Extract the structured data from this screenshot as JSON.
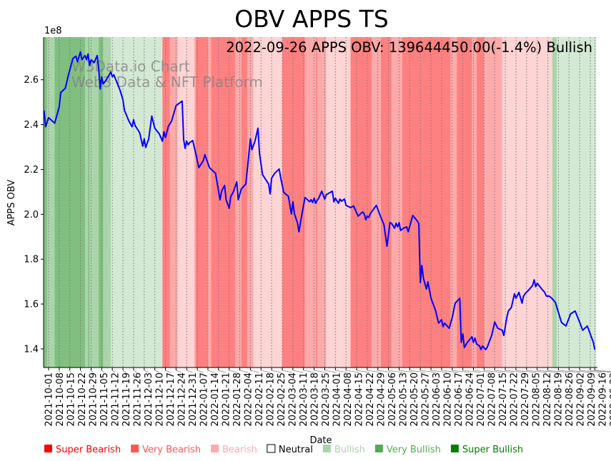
{
  "chart_data": {
    "type": "line",
    "title": "OBV APPS TS",
    "xlabel": "Date",
    "ylabel": "APPS OBV",
    "y_offset_label": "1e8",
    "y_scale": 100000000,
    "x_origin_date": "2021-10-01",
    "xlim_days": [
      -3.3,
      361.7
    ],
    "ylim": [
      1.317,
      2.79
    ],
    "yticks": [
      1.4,
      1.6,
      1.8,
      2.0,
      2.2,
      2.4,
      2.6
    ],
    "ytick_labels": [
      "1.4",
      "1.6",
      "1.8",
      "2.0",
      "2.2",
      "2.4",
      "2.6"
    ],
    "xtick_labels": [
      "2021-10-01",
      "2021-10-08",
      "2021-10-15",
      "2021-10-22",
      "2021-10-29",
      "2021-11-05",
      "2021-11-12",
      "2021-11-19",
      "2021-11-26",
      "2021-12-03",
      "2021-12-10",
      "2021-12-17",
      "2021-12-24",
      "2021-12-31",
      "2022-01-07",
      "2022-01-14",
      "2022-01-21",
      "2022-01-28",
      "2022-02-04",
      "2022-02-11",
      "2022-02-18",
      "2022-02-25",
      "2022-03-04",
      "2022-03-11",
      "2022-03-18",
      "2022-03-25",
      "2022-04-01",
      "2022-04-08",
      "2022-04-15",
      "2022-04-22",
      "2022-04-29",
      "2022-05-06",
      "2022-05-13",
      "2022-05-20",
      "2022-05-27",
      "2022-06-03",
      "2022-06-10",
      "2022-06-17",
      "2022-06-24",
      "2022-07-01",
      "2022-07-08",
      "2022-07-15",
      "2022-07-22",
      "2022-07-29",
      "2022-08-05",
      "2022-08-12",
      "2022-08-19",
      "2022-08-26",
      "2022-09-02",
      "2022-09-09",
      "2022-09-16",
      "2022-09-23",
      "2022-09-26"
    ],
    "grid": "vertical dotted at x ticks",
    "annotation": "2022-09-26 APPS OBV: 139644450.00(-1.4%) Bullish",
    "watermark": [
      "W3Data.io Chart",
      "Web3 Data & NFT Platform"
    ],
    "series": [
      {
        "name": "APPS OBV",
        "color": "#0000ff",
        "points_day_value": [
          [
            -3,
            2.463
          ],
          [
            -2,
            2.39
          ],
          [
            0,
            2.431
          ],
          [
            4,
            2.406
          ],
          [
            7,
            2.479
          ],
          [
            8,
            2.543
          ],
          [
            11,
            2.562
          ],
          [
            13,
            2.619
          ],
          [
            15,
            2.67
          ],
          [
            16,
            2.695
          ],
          [
            18,
            2.705
          ],
          [
            19,
            2.68
          ],
          [
            21,
            2.724
          ],
          [
            22,
            2.689
          ],
          [
            24,
            2.708
          ],
          [
            25,
            2.689
          ],
          [
            26,
            2.715
          ],
          [
            27,
            2.664
          ],
          [
            28,
            2.689
          ],
          [
            30,
            2.676
          ],
          [
            32,
            2.708
          ],
          [
            33,
            2.651
          ],
          [
            34,
            2.559
          ],
          [
            35,
            2.613
          ],
          [
            36,
            2.581
          ],
          [
            38,
            2.6
          ],
          [
            40,
            2.622
          ],
          [
            41,
            2.635
          ],
          [
            42,
            2.613
          ],
          [
            43,
            2.622
          ],
          [
            45,
            2.587
          ],
          [
            47,
            2.555
          ],
          [
            49,
            2.511
          ],
          [
            50,
            2.463
          ],
          [
            53,
            2.415
          ],
          [
            55,
            2.39
          ],
          [
            56,
            2.422
          ],
          [
            57,
            2.396
          ],
          [
            60,
            2.364
          ],
          [
            62,
            2.304
          ],
          [
            63,
            2.336
          ],
          [
            64,
            2.298
          ],
          [
            66,
            2.336
          ],
          [
            68,
            2.438
          ],
          [
            70,
            2.384
          ],
          [
            73,
            2.358
          ],
          [
            75,
            2.326
          ],
          [
            76,
            2.368
          ],
          [
            77,
            2.342
          ],
          [
            79,
            2.393
          ],
          [
            81,
            2.415
          ],
          [
            84,
            2.485
          ],
          [
            88,
            2.505
          ],
          [
            89,
            2.333
          ],
          [
            90,
            2.294
          ],
          [
            91,
            2.326
          ],
          [
            92,
            2.31
          ],
          [
            93,
            2.32
          ],
          [
            95,
            2.329
          ],
          [
            98,
            2.24
          ],
          [
            99,
            2.208
          ],
          [
            102,
            2.24
          ],
          [
            103,
            2.266
          ],
          [
            106,
            2.208
          ],
          [
            110,
            2.183
          ],
          [
            113,
            2.065
          ],
          [
            114,
            2.103
          ],
          [
            116,
            2.129
          ],
          [
            117,
            2.065
          ],
          [
            119,
            2.027
          ],
          [
            120,
            2.078
          ],
          [
            122,
            2.103
          ],
          [
            124,
            2.145
          ],
          [
            125,
            2.065
          ],
          [
            127,
            2.113
          ],
          [
            130,
            2.135
          ],
          [
            133,
            2.336
          ],
          [
            134,
            2.288
          ],
          [
            136,
            2.326
          ],
          [
            138,
            2.384
          ],
          [
            139,
            2.272
          ],
          [
            141,
            2.177
          ],
          [
            145,
            2.135
          ],
          [
            146,
            2.091
          ],
          [
            147,
            2.161
          ],
          [
            149,
            2.183
          ],
          [
            152,
            2.202
          ],
          [
            153,
            2.161
          ],
          [
            155,
            2.097
          ],
          [
            158,
            2.081
          ],
          [
            159,
            2.043
          ],
          [
            160,
            2.002
          ],
          [
            161,
            2.056
          ],
          [
            162,
            2.002
          ],
          [
            164,
            1.963
          ],
          [
            165,
            1.922
          ],
          [
            167,
            2.002
          ],
          [
            169,
            2.075
          ],
          [
            172,
            2.056
          ],
          [
            173,
            2.065
          ],
          [
            174,
            2.053
          ],
          [
            175,
            2.072
          ],
          [
            176,
            2.049
          ],
          [
            177,
            2.062
          ],
          [
            178,
            2.072
          ],
          [
            180,
            2.103
          ],
          [
            182,
            2.068
          ],
          [
            183,
            2.088
          ],
          [
            187,
            2.103
          ],
          [
            188,
            2.056
          ],
          [
            189,
            2.072
          ],
          [
            191,
            2.049
          ],
          [
            192,
            2.068
          ],
          [
            193,
            2.059
          ],
          [
            195,
            2.068
          ],
          [
            196,
            2.04
          ],
          [
            199,
            2.03
          ],
          [
            201,
            2.037
          ],
          [
            204,
            1.992
          ],
          [
            207,
            2.011
          ],
          [
            208,
            2.002
          ],
          [
            209,
            1.976
          ],
          [
            210,
            1.992
          ],
          [
            211,
            1.986
          ],
          [
            212,
            2.002
          ],
          [
            216,
            2.04
          ],
          [
            219,
            1.986
          ],
          [
            221,
            1.954
          ],
          [
            223,
            1.858
          ],
          [
            225,
            1.963
          ],
          [
            226,
            1.96
          ],
          [
            228,
            1.938
          ],
          [
            229,
            1.96
          ],
          [
            230,
            1.944
          ],
          [
            231,
            1.963
          ],
          [
            232,
            1.928
          ],
          [
            234,
            1.938
          ],
          [
            236,
            1.944
          ],
          [
            237,
            1.922
          ],
          [
            240,
            1.995
          ],
          [
            243,
            1.97
          ],
          [
            244,
            1.957
          ],
          [
            245,
            1.696
          ],
          [
            246,
            1.772
          ],
          [
            247,
            1.715
          ],
          [
            249,
            1.667
          ],
          [
            250,
            1.699
          ],
          [
            252,
            1.626
          ],
          [
            255,
            1.572
          ],
          [
            257,
            1.515
          ],
          [
            259,
            1.53
          ],
          [
            260,
            1.499
          ],
          [
            261,
            1.515
          ],
          [
            264,
            1.492
          ],
          [
            266,
            1.54
          ],
          [
            268,
            1.604
          ],
          [
            271,
            1.626
          ],
          [
            272,
            1.429
          ],
          [
            273,
            1.467
          ],
          [
            274,
            1.406
          ],
          [
            276,
            1.429
          ],
          [
            279,
            1.454
          ],
          [
            280,
            1.429
          ],
          [
            281,
            1.448
          ],
          [
            282,
            1.422
          ],
          [
            284,
            1.413
          ],
          [
            285,
            1.397
          ],
          [
            286,
            1.413
          ],
          [
            288,
            1.397
          ],
          [
            289,
            1.406
          ],
          [
            292,
            1.46
          ],
          [
            294,
            1.52
          ],
          [
            296,
            1.492
          ],
          [
            299,
            1.483
          ],
          [
            300,
            1.46
          ],
          [
            302,
            1.54
          ],
          [
            303,
            1.569
          ],
          [
            305,
            1.585
          ],
          [
            307,
            1.646
          ],
          [
            308,
            1.626
          ],
          [
            310,
            1.652
          ],
          [
            312,
            1.604
          ],
          [
            313,
            1.635
          ],
          [
            314,
            1.646
          ],
          [
            317,
            1.667
          ],
          [
            319,
            1.683
          ],
          [
            320,
            1.708
          ],
          [
            321,
            1.677
          ],
          [
            322,
            1.693
          ],
          [
            325,
            1.667
          ],
          [
            327,
            1.652
          ],
          [
            328,
            1.636
          ],
          [
            329,
            1.635
          ],
          [
            330,
            1.635
          ],
          [
            332,
            1.623
          ],
          [
            334,
            1.607
          ],
          [
            337,
            1.54
          ],
          [
            338,
            1.518
          ],
          [
            341,
            1.502
          ],
          [
            344,
            1.556
          ],
          [
            347,
            1.569
          ],
          [
            350,
            1.518
          ],
          [
            352,
            1.483
          ],
          [
            355,
            1.502
          ],
          [
            359,
            1.429
          ],
          [
            360,
            1.396
          ]
        ]
      }
    ],
    "sentiment_bands": [
      {
        "start": "2021-09-28",
        "end": "2021-09-30",
        "level": "super_bullish"
      },
      {
        "start": "2021-09-30",
        "end": "2021-10-05",
        "level": "very_bullish"
      },
      {
        "start": "2021-10-05",
        "end": "2021-10-25",
        "level": "super_bullish"
      },
      {
        "start": "2021-10-25",
        "end": "2021-10-27",
        "level": "very_bullish"
      },
      {
        "start": "2021-10-27",
        "end": "2021-10-28",
        "level": "super_bullish"
      },
      {
        "start": "2021-10-28",
        "end": "2021-11-03",
        "level": "very_bullish"
      },
      {
        "start": "2021-11-03",
        "end": "2021-11-06",
        "level": "super_bullish"
      },
      {
        "start": "2021-11-06",
        "end": "2021-11-11",
        "level": "very_bullish"
      },
      {
        "start": "2021-11-11",
        "end": "2021-12-15",
        "level": "bullish"
      },
      {
        "start": "2021-12-15",
        "end": "2021-12-20",
        "level": "super_bearish"
      },
      {
        "start": "2021-12-20",
        "end": "2021-12-25",
        "level": "very_bearish"
      },
      {
        "start": "2021-12-25",
        "end": "2022-01-05",
        "level": "bearish"
      },
      {
        "start": "2022-01-05",
        "end": "2022-01-06",
        "level": "very_bearish"
      },
      {
        "start": "2022-01-06",
        "end": "2022-01-14",
        "level": "super_bearish"
      },
      {
        "start": "2022-01-14",
        "end": "2022-01-16",
        "level": "very_bearish"
      },
      {
        "start": "2022-01-16",
        "end": "2022-02-01",
        "level": "super_bearish"
      },
      {
        "start": "2022-02-01",
        "end": "2022-02-05",
        "level": "very_bearish"
      },
      {
        "start": "2022-02-05",
        "end": "2022-02-09",
        "level": "super_bearish"
      },
      {
        "start": "2022-02-09",
        "end": "2022-02-13",
        "level": "very_bearish"
      },
      {
        "start": "2022-02-13",
        "end": "2022-03-04",
        "level": "bearish"
      },
      {
        "start": "2022-03-04",
        "end": "2022-03-19",
        "level": "super_bearish"
      },
      {
        "start": "2022-03-19",
        "end": "2022-03-26",
        "level": "very_bearish"
      },
      {
        "start": "2022-03-26",
        "end": "2022-03-27",
        "level": "super_bearish"
      },
      {
        "start": "2022-03-27",
        "end": "2022-04-02",
        "level": "very_bearish"
      },
      {
        "start": "2022-04-02",
        "end": "2022-04-18",
        "level": "bearish"
      },
      {
        "start": "2022-04-18",
        "end": "2022-05-02",
        "level": "super_bearish"
      },
      {
        "start": "2022-05-02",
        "end": "2022-05-08",
        "level": "very_bearish"
      },
      {
        "start": "2022-05-08",
        "end": "2022-05-15",
        "level": "super_bearish"
      },
      {
        "start": "2022-05-15",
        "end": "2022-05-22",
        "level": "very_bearish"
      },
      {
        "start": "2022-05-22",
        "end": "2022-06-23",
        "level": "super_bearish"
      },
      {
        "start": "2022-06-23",
        "end": "2022-06-27",
        "level": "very_bearish"
      },
      {
        "start": "2022-06-27",
        "end": "2022-07-07",
        "level": "super_bearish"
      },
      {
        "start": "2022-07-07",
        "end": "2022-07-10",
        "level": "very_bearish"
      },
      {
        "start": "2022-07-10",
        "end": "2022-07-15",
        "level": "super_bearish"
      },
      {
        "start": "2022-07-15",
        "end": "2022-07-27",
        "level": "very_bearish"
      },
      {
        "start": "2022-07-27",
        "end": "2022-08-29",
        "level": "bearish"
      },
      {
        "start": "2022-08-29",
        "end": "2022-09-01",
        "level": "very_bullish"
      },
      {
        "start": "2022-09-01",
        "end": "2022-09-27",
        "level": "bullish"
      }
    ],
    "band_colors": {
      "super_bearish": "#ff8080",
      "very_bearish": "#ffaaaa",
      "bearish": "#ffd4d4",
      "bullish": "#d4e9d4",
      "very_bullish": "#aad4aa",
      "super_bullish": "#80bf80"
    },
    "legend": {
      "placement": "bottom",
      "items": [
        {
          "label": "Super Bearish",
          "color": "#ff0000",
          "key": "super_bearish"
        },
        {
          "label": "Very Bearish",
          "color": "#ff5555",
          "key": "very_bearish"
        },
        {
          "label": "Bearish",
          "color": "#ffaaaa",
          "key": "bearish"
        },
        {
          "label": "Neutral",
          "color": "#000000",
          "key": "neutral",
          "outline": true
        },
        {
          "label": "Bullish",
          "color": "#aad4aa",
          "key": "bullish"
        },
        {
          "label": "Very Bullish",
          "color": "#55aa55",
          "key": "very_bullish"
        },
        {
          "label": "Super Bullish",
          "color": "#008000",
          "key": "super_bullish"
        }
      ]
    }
  }
}
